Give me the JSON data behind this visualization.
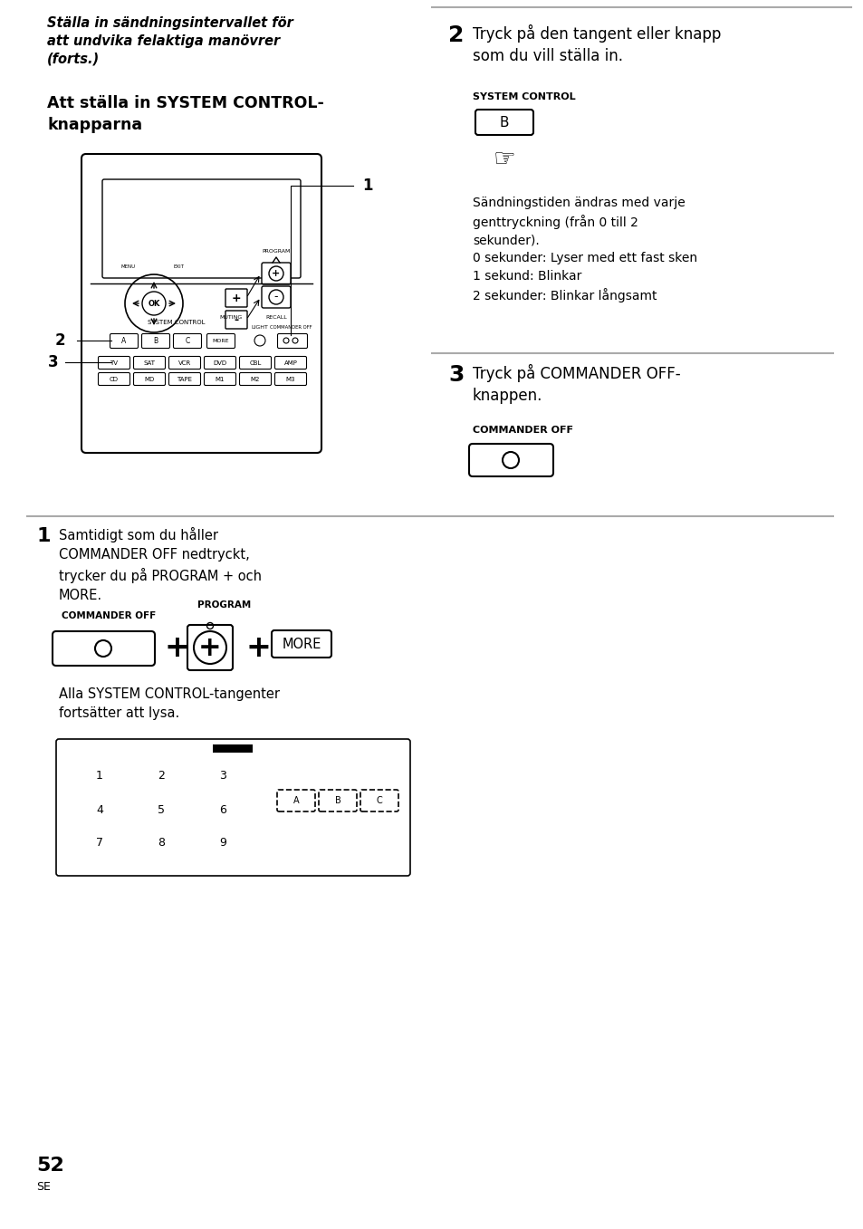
{
  "bg_color": "#ffffff",
  "text_color": "#000000",
  "page_width": 9.54,
  "page_height": 13.57,
  "top_italic_title": "Ställa in sändningsintervallet för\natt undvika felaktiga manövrer\n(forts.)",
  "section_title": "Att ställa in SYSTEM CONTROL-\nknapparna",
  "step2_title": "Tryck på den tangent eller knapp\nsom du vill ställa in.",
  "step2_label": "SYSTEM CONTROL",
  "step2_body": "Sändningstiden ändras med varje\ngenttryckning (från 0 till 2\nsekunder).\n0 sekunder: Lyser med ett fast sken\n1 sekund: Blinkar\n2 sekunder: Blinkar långsamt",
  "step3_title": "Tryck på COMMANDER OFF-\nknappen.",
  "step3_label": "COMMANDER OFF",
  "step1_title": "Samtidigt som du håller\nCOMMANDER OFF nedtryckt,\ntrycker du på PROGRAM + och\nMORE.",
  "step1_label_left": "COMMANDER OFF",
  "step1_label_top": "PROGRAM",
  "step1_body": "Alla SYSTEM CONTROL-tangenter\nfortsätter att lysa.",
  "page_number": "52",
  "page_sub": "SE",
  "divider_color": "#aaaaaa",
  "remote_abc": [
    "A",
    "B",
    "C"
  ],
  "remote_dev1": [
    "TV",
    "SAT",
    "VCR",
    "DVD",
    "CBL",
    "AMP"
  ],
  "remote_dev2": [
    "CD",
    "MD",
    "TAPE",
    "M1",
    "M2",
    "M3"
  ],
  "keypad_nums": [
    "1",
    "2",
    "3",
    "4",
    "5",
    "6",
    "7",
    "8",
    "9"
  ],
  "keypad_abc": [
    "A",
    "B",
    "C"
  ]
}
